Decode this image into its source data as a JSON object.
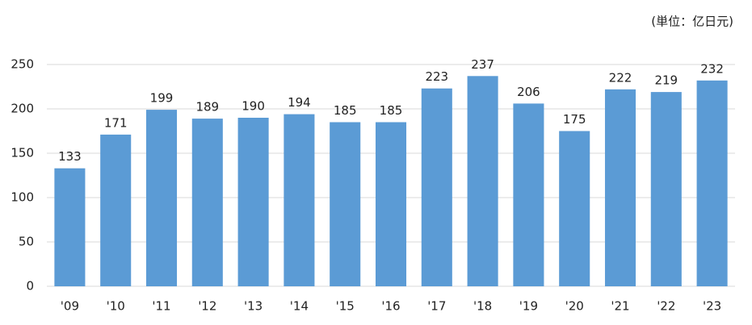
{
  "chart_data": {
    "type": "bar",
    "annotation": "(単位：亿日元)",
    "categories": [
      "'09",
      "'10",
      "'11",
      "'12",
      "'13",
      "'14",
      "'15",
      "'16",
      "'17",
      "'18",
      "'19",
      "'20",
      "'21",
      "'22",
      "'23"
    ],
    "values": [
      133,
      171,
      199,
      189,
      190,
      194,
      185,
      185,
      223,
      237,
      206,
      175,
      222,
      219,
      232
    ],
    "color": "#5b9bd5",
    "ylim": [
      0,
      250
    ],
    "yticks": [
      0,
      50,
      100,
      150,
      200,
      250
    ],
    "grid": true
  }
}
